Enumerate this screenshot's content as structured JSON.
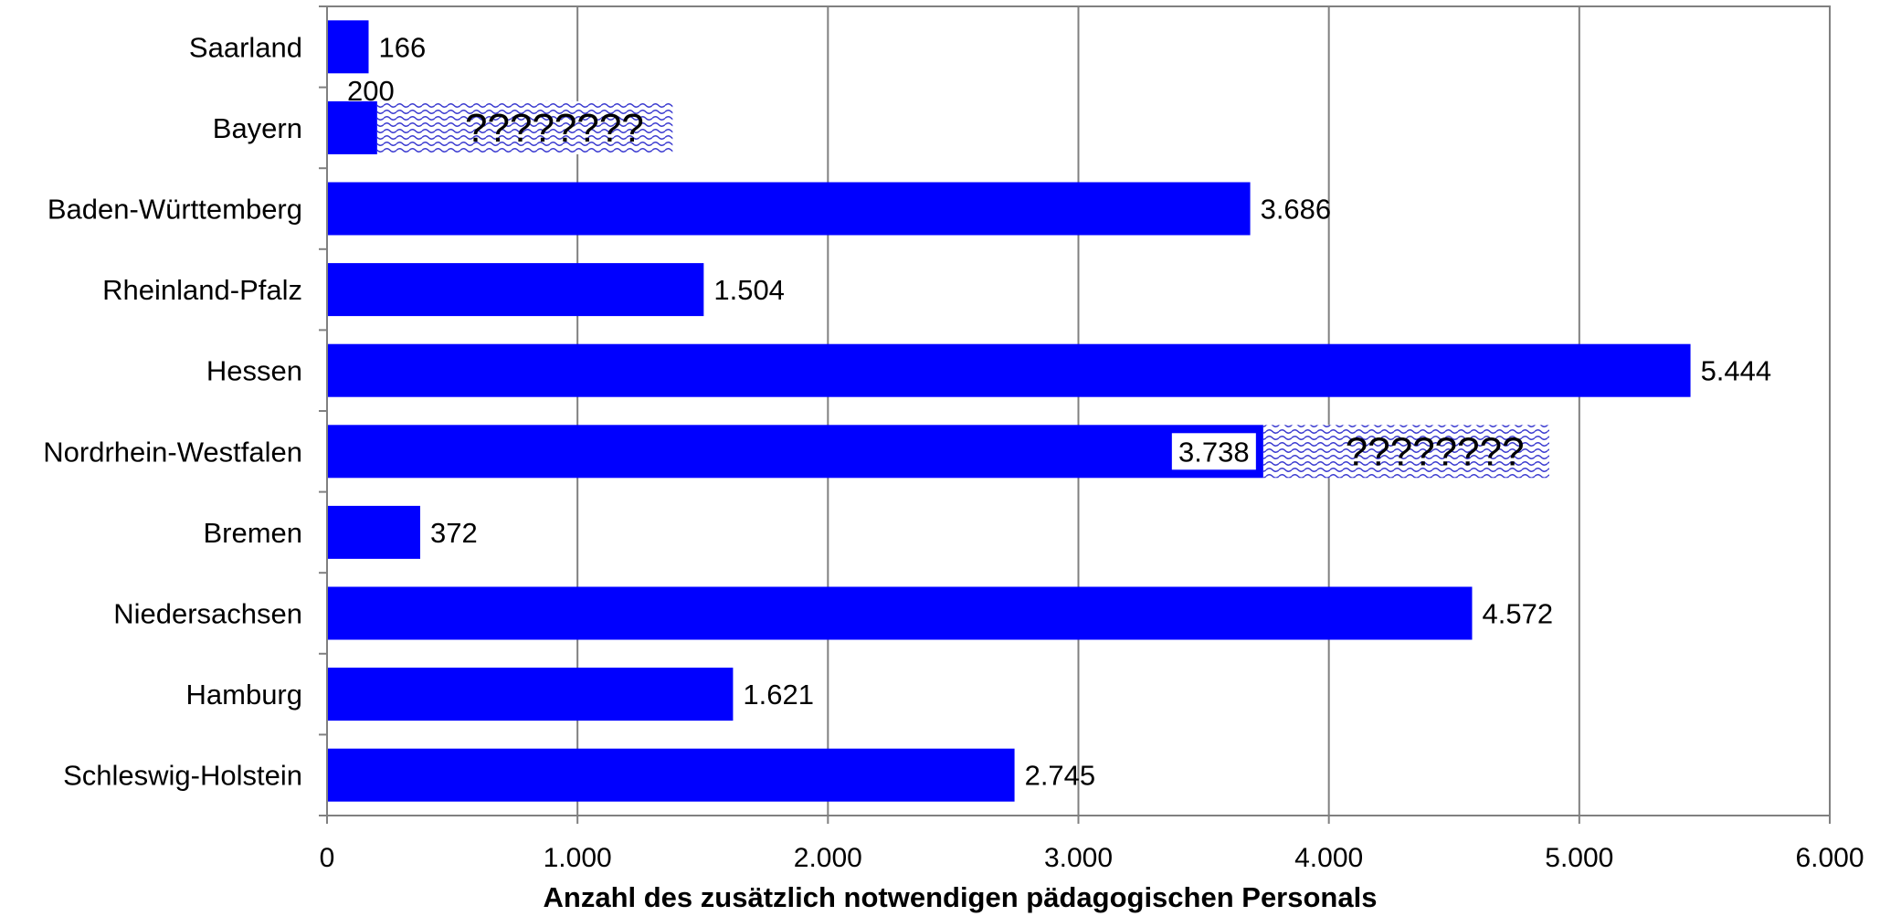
{
  "chart_data": {
    "type": "bar",
    "orientation": "horizontal",
    "categories": [
      "Saarland",
      "Bayern",
      "Baden-Württemberg",
      "Rheinland-Pfalz",
      "Hessen",
      "Nordrhein-Westfalen",
      "Bremen",
      "Niedersachsen",
      "Hamburg",
      "Schleswig-Holstein"
    ],
    "values": [
      166,
      200,
      3686,
      1504,
      5444,
      3738,
      372,
      4572,
      1621,
      2745
    ],
    "data_labels": [
      "166",
      "200",
      "3.686",
      "1.504",
      "5.444",
      "3.738",
      "372",
      "4.572",
      "1.621",
      "2.745"
    ],
    "unknown_segments": [
      {
        "category": "Bayern",
        "from": 200,
        "to": 1380,
        "label": "????????"
      },
      {
        "category": "Nordrhein-Westfalen",
        "from": 3738,
        "to": 4880,
        "label": "????????"
      }
    ],
    "xlabel": "Anzahl des zusätzlich notwendigen pädagogischen Personals",
    "ylabel": "",
    "xlim": [
      0,
      6000
    ],
    "xticks": [
      0,
      1000,
      2000,
      3000,
      4000,
      5000,
      6000
    ],
    "xtick_labels": [
      "0",
      "1.000",
      "2.000",
      "3.000",
      "4.000",
      "5.000",
      "6.000"
    ],
    "grid": "vertical",
    "legend": "none",
    "bar_color": "#0000FF",
    "hatch_color": "#3333CC"
  }
}
